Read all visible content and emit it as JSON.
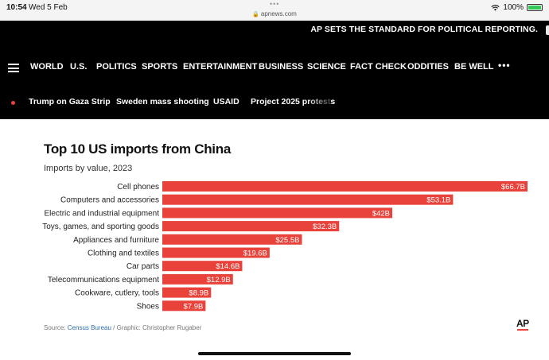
{
  "status_bar": {
    "time": "10:54",
    "date": "Wed 5 Feb",
    "url": "apnews.com",
    "battery": "100%",
    "battery_level": 1.0
  },
  "header": {
    "promo_text": "AP SETS THE STANDARD FOR POLITICAL REPORTING.",
    "nav_items": [
      "WORLD",
      "U.S.",
      "POLITICS",
      "SPORTS",
      "ENTERTAINMENT",
      "BUSINESS",
      "SCIENCE",
      "FACT CHECK",
      "ODDITIES",
      "BE WELL"
    ],
    "more_label": "•••",
    "trending": [
      "Trump on Gaza Strip",
      "Sweden mass shooting",
      "USAID",
      "Project 2025 protests"
    ]
  },
  "colors": {
    "bar": "#e8423a",
    "header_bg": "#000000",
    "link": "#2b6fb0"
  },
  "chart_data": {
    "type": "bar",
    "orientation": "horizontal",
    "title": "Top 10 US imports from China",
    "subtitle": "Imports by value, 2023",
    "categories": [
      "Cell phones",
      "Computers and accessories",
      "Electric and industrial equipment",
      "Toys, games, and sporting goods",
      "Appliances and furniture",
      "Clothing and textiles",
      "Car parts",
      "Telecommunications equipment",
      "Cookware, cutlery, tools",
      "Shoes"
    ],
    "values": [
      66.7,
      53.1,
      42,
      32.3,
      25.5,
      19.6,
      14.6,
      12.9,
      8.9,
      7.9
    ],
    "value_labels": [
      "$66.7B",
      "$53.1B",
      "$42B",
      "$32.3B",
      "$25.5B",
      "$19.6B",
      "$14.6B",
      "$12.9B",
      "$8.9B",
      "$7.9B"
    ],
    "xlim": [
      0,
      66.7
    ],
    "grid": false,
    "legend": "none"
  },
  "source": {
    "prefix": "Source: ",
    "link_text": "Census Bureau",
    "suffix": " / Graphic: Christopher Rugaber"
  },
  "logo_text": "AP"
}
